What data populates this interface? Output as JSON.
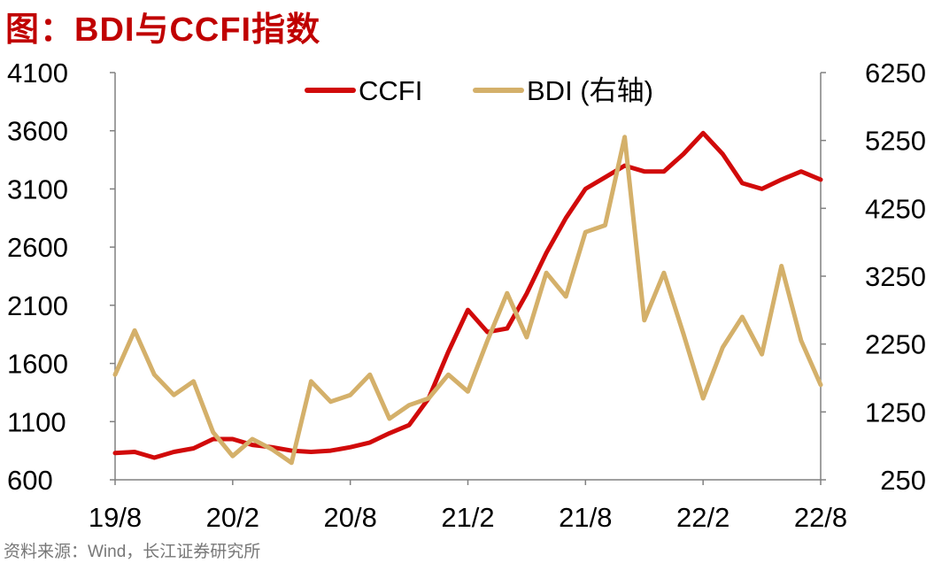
{
  "header": {
    "title": "图：BDI与CCFI指数"
  },
  "footer": {
    "source": "资料来源：Wind，长江证券研究所"
  },
  "colors": {
    "ccfi": "#d10a0a",
    "bdi": "#d4b06a",
    "axis": "#808080"
  },
  "chart_data": {
    "type": "line",
    "title": "图：BDI与CCFI指数",
    "x_tick_labels": [
      "19/8",
      "20/2",
      "20/8",
      "21/2",
      "21/8",
      "22/2",
      "22/8"
    ],
    "xlim": [
      "2019-08",
      "2022-08"
    ],
    "y_left": {
      "ylim": [
        600,
        4100
      ],
      "ticks": [
        4100,
        3600,
        3100,
        2600,
        2100,
        1600,
        1100,
        600
      ]
    },
    "y_right": {
      "ylim": [
        250,
        6250
      ],
      "ticks": [
        6250,
        5250,
        4250,
        3250,
        2250,
        1250,
        250
      ]
    },
    "legend": {
      "placement": "top-center",
      "entries": [
        "CCFI",
        "BDI (右轴)"
      ]
    },
    "series": [
      {
        "name": "CCFI",
        "axis": "left",
        "x": [
          "2019-08",
          "2019-09",
          "2019-10",
          "2019-11",
          "2019-12",
          "2020-01",
          "2020-02",
          "2020-03",
          "2020-04",
          "2020-05",
          "2020-06",
          "2020-07",
          "2020-08",
          "2020-09",
          "2020-10",
          "2020-11",
          "2020-12",
          "2021-01",
          "2021-02",
          "2021-03",
          "2021-04",
          "2021-05",
          "2021-06",
          "2021-07",
          "2021-08",
          "2021-09",
          "2021-10",
          "2021-11",
          "2021-12",
          "2022-01",
          "2022-02",
          "2022-03",
          "2022-04",
          "2022-05",
          "2022-06",
          "2022-07",
          "2022-08"
        ],
        "values": [
          830,
          840,
          790,
          840,
          870,
          950,
          950,
          900,
          880,
          850,
          840,
          850,
          880,
          920,
          1000,
          1070,
          1300,
          1700,
          2060,
          1870,
          1900,
          2200,
          2550,
          2850,
          3100,
          3200,
          3300,
          3250,
          3250,
          3400,
          3580,
          3400,
          3150,
          3100,
          3180,
          3250,
          3180
        ]
      },
      {
        "name": "BDI (右轴)",
        "axis": "right",
        "x": [
          "2019-08",
          "2019-09",
          "2019-10",
          "2019-11",
          "2019-12",
          "2020-01",
          "2020-02",
          "2020-03",
          "2020-04",
          "2020-05",
          "2020-06",
          "2020-07",
          "2020-08",
          "2020-09",
          "2020-10",
          "2020-11",
          "2020-12",
          "2021-01",
          "2021-02",
          "2021-03",
          "2021-04",
          "2021-05",
          "2021-06",
          "2021-07",
          "2021-08",
          "2021-09",
          "2021-10",
          "2021-11",
          "2021-12",
          "2022-01",
          "2022-02",
          "2022-03",
          "2022-04",
          "2022-05",
          "2022-06",
          "2022-07",
          "2022-08"
        ],
        "values": [
          1800,
          2450,
          1800,
          1500,
          1700,
          950,
          600,
          850,
          700,
          500,
          1700,
          1400,
          1500,
          1800,
          1150,
          1350,
          1450,
          1800,
          1550,
          2300,
          3000,
          2350,
          3300,
          2950,
          3900,
          4000,
          5300,
          2600,
          3300,
          2400,
          1450,
          2200,
          2650,
          2100,
          3400,
          2300,
          1650
        ]
      }
    ]
  }
}
